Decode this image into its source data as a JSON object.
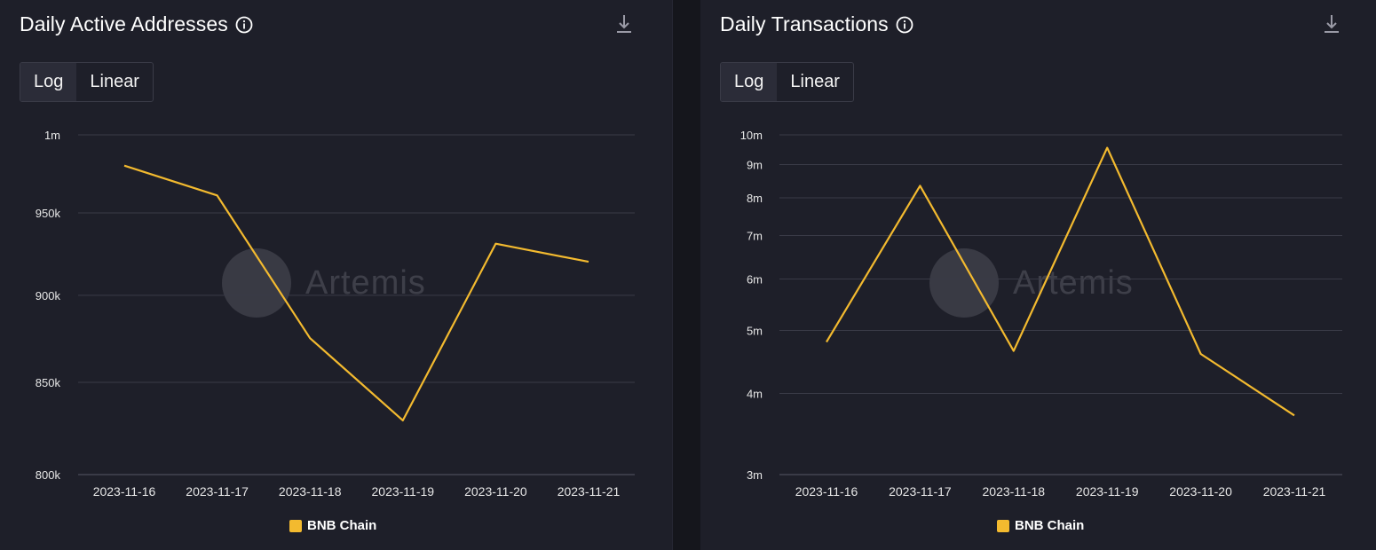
{
  "colors": {
    "series": "#f3ba2f",
    "grid": "#3a3b47",
    "axis_text": "#e6e6e6"
  },
  "watermark": {
    "text": "Artemis"
  },
  "panels": [
    {
      "title": "Daily Active Addresses",
      "toggle": {
        "log_label": "Log",
        "linear_label": "Linear",
        "active": "Log"
      },
      "legend_label": "BNB Chain"
    },
    {
      "title": "Daily Transactions",
      "toggle": {
        "log_label": "Log",
        "linear_label": "Linear",
        "active": "Log"
      },
      "legend_label": "BNB Chain"
    }
  ],
  "chart_data": [
    {
      "type": "line",
      "title": "Daily Active Addresses",
      "xlabel": "",
      "ylabel": "",
      "scale": "log",
      "x": [
        "2023-11-16",
        "2023-11-17",
        "2023-11-18",
        "2023-11-19",
        "2023-11-20",
        "2023-11-21"
      ],
      "series": [
        {
          "name": "BNB Chain",
          "values": [
            980000,
            961000,
            875000,
            829000,
            931000,
            920000
          ]
        }
      ],
      "yticks": [
        800000,
        850000,
        900000,
        950000,
        1000000
      ],
      "ytick_labels": [
        "800k",
        "850k",
        "900k",
        "950k",
        "1m"
      ],
      "ylim": [
        800000,
        1000000
      ],
      "grid": true,
      "legend": "bottom-center"
    },
    {
      "type": "line",
      "title": "Daily Transactions",
      "xlabel": "",
      "ylabel": "",
      "scale": "log",
      "x": [
        "2023-11-16",
        "2023-11-17",
        "2023-11-18",
        "2023-11-19",
        "2023-11-20",
        "2023-11-21"
      ],
      "series": [
        {
          "name": "BNB Chain",
          "values": [
            4800000,
            8350000,
            4650000,
            9550000,
            4600000,
            3700000
          ]
        }
      ],
      "yticks": [
        3000000,
        4000000,
        5000000,
        6000000,
        7000000,
        8000000,
        9000000,
        10000000
      ],
      "ytick_labels": [
        "3m",
        "4m",
        "5m",
        "6m",
        "7m",
        "8m",
        "9m",
        "10m"
      ],
      "ylim": [
        3000000,
        10000000
      ],
      "grid": true,
      "legend": "bottom-center"
    }
  ]
}
